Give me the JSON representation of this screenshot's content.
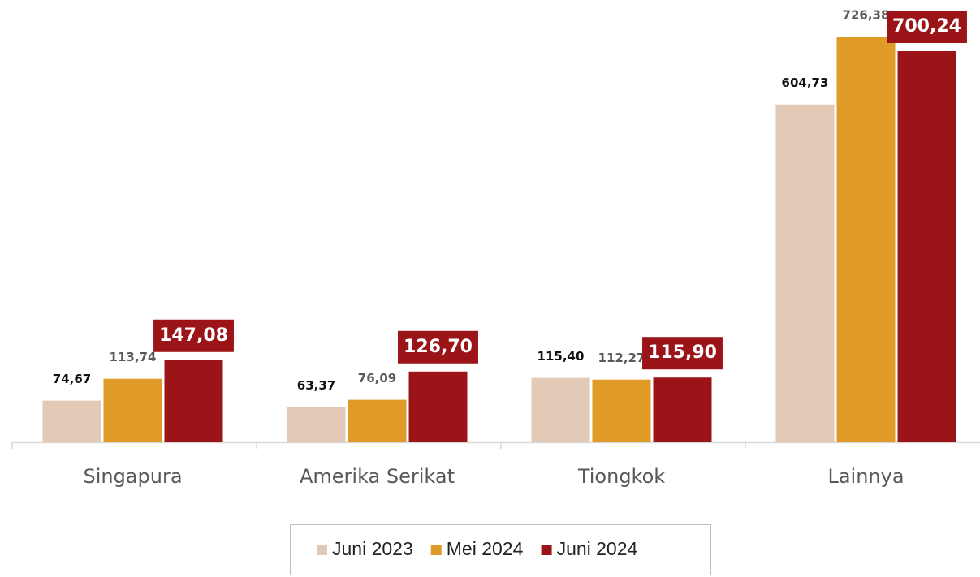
{
  "chart_data": {
    "type": "bar",
    "categories": [
      "Singapura",
      "Amerika Serikat",
      "Tiongkok",
      "Lainnya"
    ],
    "series": [
      {
        "name": "Juni 2023",
        "color": "#e2cab6",
        "label_color": "#111111",
        "values": [
          74.67,
          63.37,
          115.4,
          604.73
        ],
        "value_labels": [
          "74,67",
          "63,37",
          "115,40",
          "604,73"
        ]
      },
      {
        "name": "Mei 2024",
        "color": "#e09a27",
        "label_color": "#595959",
        "values": [
          113.74,
          76.09,
          112.27,
          726.38
        ],
        "value_labels": [
          "113,74",
          "76,09",
          "112,27",
          "726,38"
        ]
      },
      {
        "name": "Juni 2024",
        "color": "#9b1418",
        "label_color": "#ffffff",
        "label_box": true,
        "values": [
          147.08,
          126.7,
          115.9,
          700.24
        ],
        "value_labels": [
          "147,08",
          "126,70",
          "115,90",
          "700,24"
        ]
      }
    ],
    "grid": false,
    "legend": "bottom"
  }
}
